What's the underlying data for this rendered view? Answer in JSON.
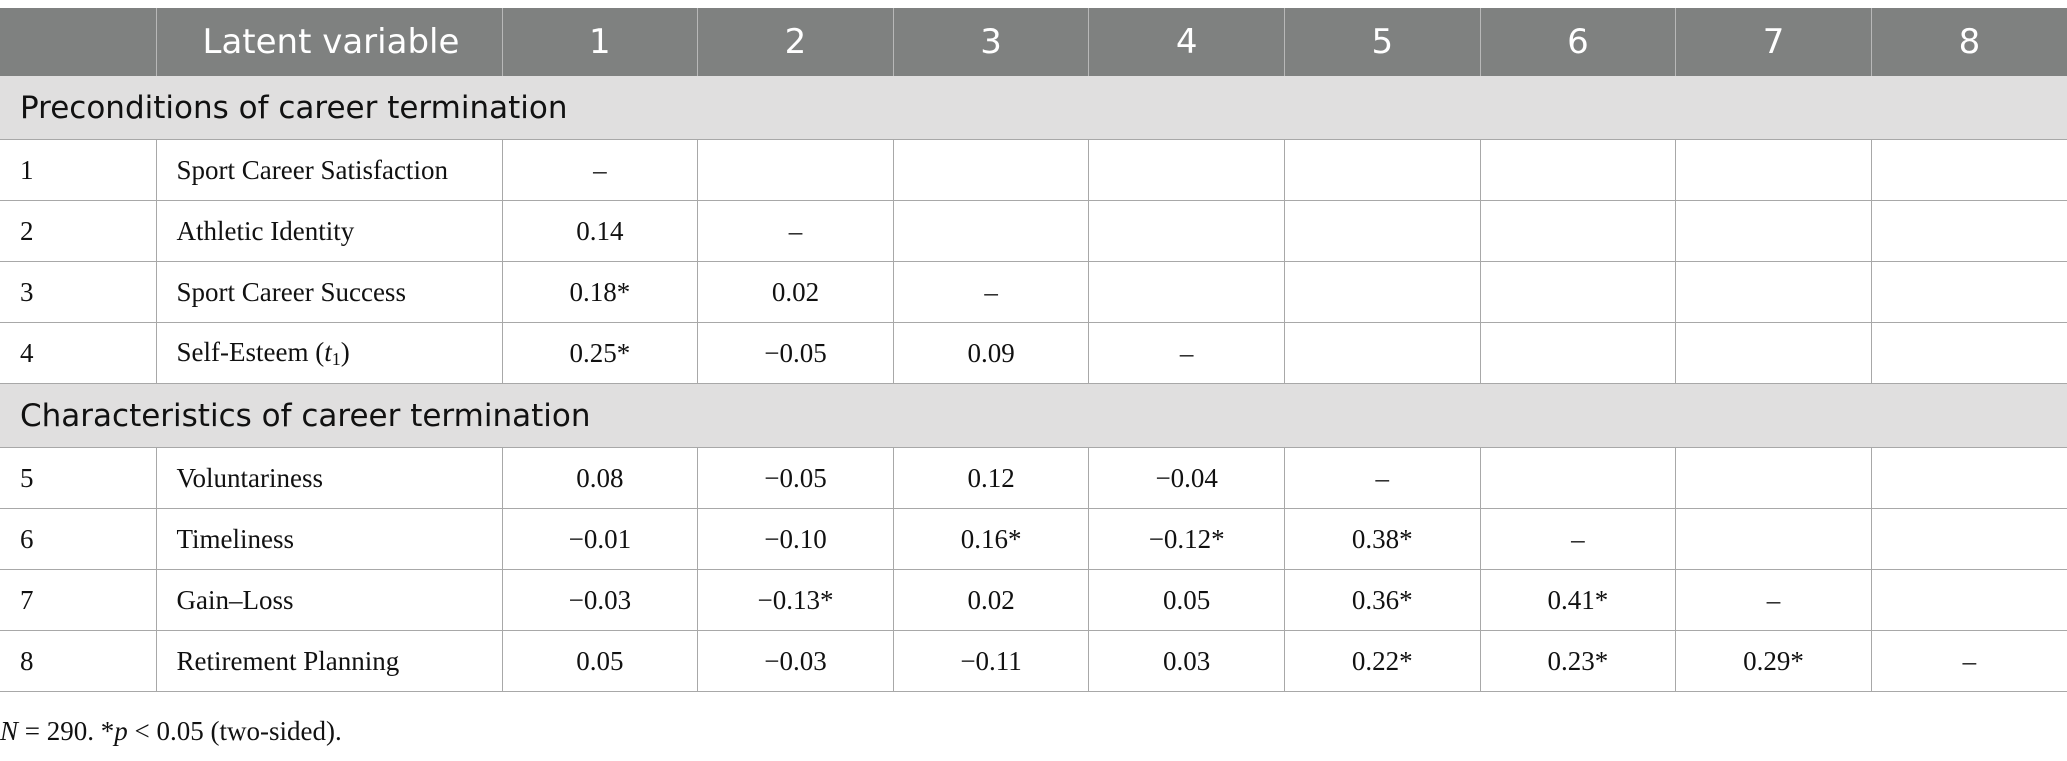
{
  "header": {
    "blank": "",
    "latent_label": "Latent variable",
    "columns": [
      "1",
      "2",
      "3",
      "4",
      "5",
      "6",
      "7",
      "8"
    ]
  },
  "sections": {
    "preconditions": "Preconditions of career termination",
    "characteristics": "Characteristics of career termination"
  },
  "rows": [
    {
      "index": "1",
      "name": "Sport Career Satisfaction",
      "values": [
        "–",
        "",
        "",
        "",
        "",
        "",
        "",
        ""
      ]
    },
    {
      "index": "2",
      "name": "Athletic Identity",
      "values": [
        "0.14",
        "–",
        "",
        "",
        "",
        "",
        "",
        ""
      ]
    },
    {
      "index": "3",
      "name": "Sport Career Success",
      "values": [
        "0.18*",
        "0.02",
        "–",
        "",
        "",
        "",
        "",
        ""
      ]
    },
    {
      "index": "4",
      "name_prefix": "Self-Esteem (",
      "name_var": "t",
      "name_sub": "1",
      "name_suffix": ")",
      "values": [
        "0.25*",
        "−0.05",
        "0.09",
        "–",
        "",
        "",
        "",
        ""
      ]
    },
    {
      "index": "5",
      "name": "Voluntariness",
      "values": [
        "0.08",
        "−0.05",
        "0.12",
        "−0.04",
        "–",
        "",
        "",
        ""
      ]
    },
    {
      "index": "6",
      "name": "Timeliness",
      "values": [
        "−0.01",
        "−0.10",
        "0.16*",
        "−0.12*",
        "0.38*",
        "–",
        "",
        ""
      ]
    },
    {
      "index": "7",
      "name": "Gain–Loss",
      "values": [
        "−0.03",
        "−0.13*",
        "0.02",
        "0.05",
        "0.36*",
        "0.41*",
        "–",
        ""
      ]
    },
    {
      "index": "8",
      "name": "Retirement Planning",
      "values": [
        "0.05",
        "−0.03",
        "−0.11",
        "0.03",
        "0.22*",
        "0.23*",
        "0.29*",
        "–"
      ]
    }
  ],
  "note": {
    "n_var": "N",
    "n_text": " = 290. *",
    "p_var": "p",
    "p_text": " < 0.05 (two-sided)."
  }
}
